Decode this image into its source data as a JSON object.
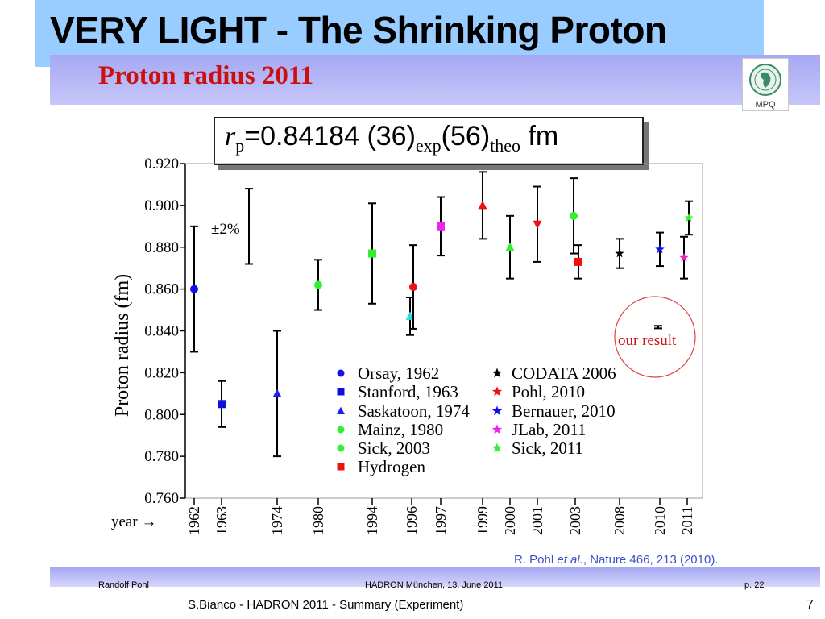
{
  "slide": {
    "title": "VERY LIGHT - The Shrinking Proton",
    "inner_title": "Proton radius 2011",
    "logo_text": "MPQ",
    "formula": {
      "r": "r",
      "r_sub": "p",
      "value": "=0.84184 (36)",
      "sub1": "exp",
      "value2": "(56)",
      "sub2": "theo",
      "unit": " fm"
    },
    "citation": {
      "authors": "R. Pohl ",
      "etal": "et al.",
      "rest": ", Nature 466, 213 (2010)."
    },
    "footer": {
      "left": "Randolf Pohl",
      "center": "HADRON München, 13. June 2011",
      "right": "p. 22"
    },
    "bottom_text": "S.Bianco - HADRON 2011 - Summary (Experiment)",
    "page_number": "7"
  },
  "colors": {
    "title_bar": "#99ccff",
    "inner_bar": "#a6a8f4",
    "inner_title": "#cc1010",
    "citation": "#3a52c8",
    "orsay": "#1010ee",
    "stanford": "#1010dd",
    "saskatoon": "#2020ee",
    "green": "#33ee33",
    "red": "#ee1111",
    "cyan": "#33dddd",
    "magenta": "#ee22ee",
    "fuchsia": "#ee22cc",
    "black": "#000000",
    "circle": "#dd4444"
  },
  "chart_data": {
    "type": "scatter",
    "ylabel": "Proton radius (fm)",
    "ylim": [
      0.76,
      0.92
    ],
    "yticks": [
      "0.760",
      "0.780",
      "0.800",
      "0.820",
      "0.840",
      "0.860",
      "0.880",
      "0.900",
      "0.920"
    ],
    "x_axis_label": "year →",
    "xticks": [
      "1962",
      "1963",
      "1974",
      "1980",
      "1994",
      "1996",
      "1997",
      "1999",
      "2000",
      "2001",
      "2003",
      "2008",
      "2010",
      "2011"
    ],
    "annotation_percent": "±2%",
    "annotation_our_result": "our result",
    "points": [
      {
        "year": "1962",
        "y": 0.86,
        "lo": 0.83,
        "hi": 0.89,
        "marker": "circle",
        "color": "#1010ee"
      },
      {
        "year": "1963",
        "y": 0.805,
        "lo": 0.794,
        "hi": 0.816,
        "marker": "square",
        "color": "#1010dd"
      },
      {
        "year": "1974",
        "y": 0.81,
        "lo": 0.78,
        "hi": 0.84,
        "marker": "triangle",
        "color": "#2020ee"
      },
      {
        "year": "1980",
        "y": 0.862,
        "lo": 0.85,
        "hi": 0.874,
        "marker": "circle",
        "color": "#33ee33"
      },
      {
        "year": "1994",
        "y": 0.877,
        "lo": 0.853,
        "hi": 0.901,
        "marker": "square",
        "color": "#33ee33"
      },
      {
        "year": "1996",
        "y": 0.847,
        "lo": 0.838,
        "hi": 0.856,
        "marker": "triangle",
        "color": "#33dddd"
      },
      {
        "year": "1996",
        "y": 0.861,
        "lo": 0.841,
        "hi": 0.881,
        "marker": "circle",
        "color": "#ee1111"
      },
      {
        "year": "1997",
        "y": 0.89,
        "lo": 0.876,
        "hi": 0.904,
        "marker": "square",
        "color": "#ee22ee"
      },
      {
        "year": "1999",
        "y": 0.9,
        "lo": 0.884,
        "hi": 0.916,
        "marker": "triangle",
        "color": "#ee1111"
      },
      {
        "year": "2000",
        "y": 0.88,
        "lo": 0.865,
        "hi": 0.895,
        "marker": "triangle",
        "color": "#33ee33"
      },
      {
        "year": "2001",
        "y": 0.891,
        "lo": 0.873,
        "hi": 0.909,
        "marker": "triangle-down",
        "color": "#ee1111"
      },
      {
        "year": "2003",
        "y": 0.895,
        "lo": 0.877,
        "hi": 0.913,
        "marker": "circle",
        "color": "#33ee33"
      },
      {
        "year": "2003",
        "y": 0.873,
        "lo": 0.865,
        "hi": 0.881,
        "marker": "square",
        "color": "#ee1111"
      },
      {
        "year": "2008",
        "y": 0.877,
        "lo": 0.87,
        "hi": 0.884,
        "marker": "star",
        "color": "#000000"
      },
      {
        "year": "2010",
        "y": 0.879,
        "lo": 0.871,
        "hi": 0.887,
        "marker": "star",
        "color": "#1010ee"
      },
      {
        "year": "2011",
        "y": 0.875,
        "lo": 0.865,
        "hi": 0.885,
        "marker": "star",
        "color": "#ee22cc"
      },
      {
        "year": "2011",
        "y": 0.894,
        "lo": 0.886,
        "hi": 0.902,
        "marker": "star",
        "color": "#33ee33"
      },
      {
        "year": "2010",
        "y": 0.8418,
        "lo": 0.8412,
        "hi": 0.8424,
        "marker": "none",
        "color": "#000000"
      }
    ],
    "legend_left": [
      {
        "label": "Orsay, 1962",
        "marker": "circle",
        "color": "#1010ee"
      },
      {
        "label": "Stanford, 1963",
        "marker": "square",
        "color": "#1010dd"
      },
      {
        "label": "Saskatoon, 1974",
        "marker": "triangle",
        "color": "#2020ee"
      },
      {
        "label": "Mainz, 1980",
        "marker": "circle",
        "color": "#33ee33"
      },
      {
        "label": "Sick, 2003",
        "marker": "circle",
        "color": "#33ee33"
      },
      {
        "label": "Hydrogen",
        "marker": "square",
        "color": "#ee1111"
      }
    ],
    "legend_right": [
      {
        "label": "CODATA 2006",
        "marker": "star",
        "color": "#000000"
      },
      {
        "label": "Pohl, 2010",
        "marker": "star",
        "color": "#ee1111"
      },
      {
        "label": "Bernauer, 2010",
        "marker": "star",
        "color": "#1010ee"
      },
      {
        "label": "JLab, 2011",
        "marker": "star",
        "color": "#ee22ee"
      },
      {
        "label": "Sick, 2011",
        "marker": "star",
        "color": "#33ee33"
      }
    ]
  }
}
